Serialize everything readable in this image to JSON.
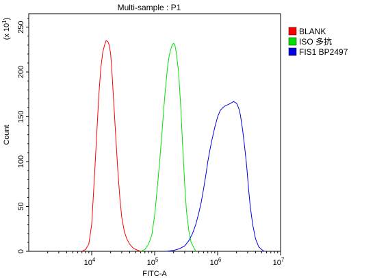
{
  "chart_data": {
    "type": "line",
    "title": "Multi-sample : P1",
    "xlabel": "FITC-A",
    "ylabel": "Count",
    "y_multiplier": "(x 10",
    "y_multiplier_exp": "1",
    "y_multiplier_close": ")",
    "x_scale": "log",
    "xlim": [
      1000,
      10000000
    ],
    "ylim": [
      0,
      265
    ],
    "x_ticks": [
      {
        "base": "10",
        "exp": "4",
        "value": 10000
      },
      {
        "base": "10",
        "exp": "5",
        "value": 100000
      },
      {
        "base": "10",
        "exp": "6",
        "value": 1000000
      },
      {
        "base": "10",
        "exp": "7",
        "value": 10000000
      }
    ],
    "y_ticks": [
      "0",
      "50",
      "100",
      "150",
      "200",
      "250"
    ],
    "legend_position": "top-right",
    "series": [
      {
        "name": "BLANK",
        "color": "#ff0000",
        "points": [
          [
            7000,
            0
          ],
          [
            8000,
            2
          ],
          [
            9000,
            8
          ],
          [
            10000,
            30
          ],
          [
            11000,
            80
          ],
          [
            12000,
            130
          ],
          [
            13000,
            175
          ],
          [
            14000,
            205
          ],
          [
            15000,
            222
          ],
          [
            16000,
            230
          ],
          [
            17000,
            235
          ],
          [
            18000,
            234
          ],
          [
            19000,
            230
          ],
          [
            20000,
            220
          ],
          [
            21000,
            200
          ],
          [
            22000,
            175
          ],
          [
            24000,
            130
          ],
          [
            26000,
            90
          ],
          [
            28000,
            60
          ],
          [
            30000,
            38
          ],
          [
            33000,
            22
          ],
          [
            36000,
            14
          ],
          [
            40000,
            8
          ],
          [
            45000,
            4
          ],
          [
            50000,
            2
          ],
          [
            60000,
            0
          ]
        ]
      },
      {
        "name": "ISO 多抗",
        "color": "#00e000",
        "points": [
          [
            60000,
            0
          ],
          [
            70000,
            2
          ],
          [
            80000,
            8
          ],
          [
            90000,
            18
          ],
          [
            100000,
            40
          ],
          [
            110000,
            70
          ],
          [
            120000,
            100
          ],
          [
            130000,
            130
          ],
          [
            140000,
            160
          ],
          [
            150000,
            185
          ],
          [
            160000,
            205
          ],
          [
            170000,
            218
          ],
          [
            180000,
            225
          ],
          [
            190000,
            230
          ],
          [
            200000,
            232
          ],
          [
            210000,
            230
          ],
          [
            220000,
            222
          ],
          [
            240000,
            200
          ],
          [
            260000,
            160
          ],
          [
            280000,
            115
          ],
          [
            300000,
            75
          ],
          [
            320000,
            45
          ],
          [
            350000,
            22
          ],
          [
            380000,
            10
          ],
          [
            420000,
            4
          ],
          [
            450000,
            0
          ]
        ]
      },
      {
        "name": "FIS1 BP2497",
        "color": "#0000e0",
        "points": [
          [
            150000,
            0
          ],
          [
            200000,
            1
          ],
          [
            250000,
            3
          ],
          [
            300000,
            6
          ],
          [
            350000,
            12
          ],
          [
            400000,
            20
          ],
          [
            450000,
            30
          ],
          [
            500000,
            42
          ],
          [
            550000,
            55
          ],
          [
            600000,
            70
          ],
          [
            650000,
            85
          ],
          [
            700000,
            100
          ],
          [
            750000,
            112
          ],
          [
            800000,
            122
          ],
          [
            900000,
            138
          ],
          [
            1000000,
            150
          ],
          [
            1100000,
            157
          ],
          [
            1200000,
            160
          ],
          [
            1300000,
            162
          ],
          [
            1400000,
            163
          ],
          [
            1500000,
            164
          ],
          [
            1600000,
            165
          ],
          [
            1700000,
            166
          ],
          [
            1800000,
            167
          ],
          [
            1900000,
            166
          ],
          [
            2000000,
            165
          ],
          [
            2100000,
            162
          ],
          [
            2200000,
            158
          ],
          [
            2300000,
            152
          ],
          [
            2500000,
            135
          ],
          [
            2700000,
            115
          ],
          [
            2900000,
            95
          ],
          [
            3100000,
            70
          ],
          [
            3300000,
            50
          ],
          [
            3600000,
            30
          ],
          [
            4000000,
            14
          ],
          [
            4500000,
            5
          ],
          [
            5000000,
            2
          ],
          [
            5500000,
            0
          ]
        ]
      }
    ]
  }
}
